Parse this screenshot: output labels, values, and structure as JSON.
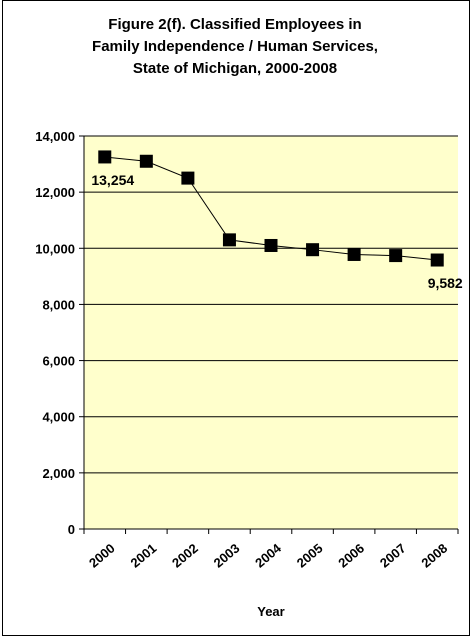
{
  "chart_data": {
    "type": "line",
    "title": "Figure 2(f). Classified Employees in\nFamily Independence / Human Services,\nState of Michigan, 2000-2008",
    "xlabel": "Year",
    "ylabel": "",
    "categories": [
      "2000",
      "2001",
      "2002",
      "2003",
      "2004",
      "2005",
      "2006",
      "2007",
      "2008"
    ],
    "series": [
      {
        "values": [
          13254,
          13100,
          12500,
          10300,
          10100,
          9950,
          9780,
          9740,
          9582
        ]
      }
    ],
    "data_labels": [
      {
        "index": 0,
        "text": "13,254"
      },
      {
        "index": 8,
        "text": "9,582"
      }
    ],
    "ylim": [
      0,
      14000
    ],
    "yticks": [
      0,
      2000,
      4000,
      6000,
      8000,
      10000,
      12000,
      14000
    ],
    "ytick_labels": [
      "0",
      "2,000",
      "4,000",
      "6,000",
      "8,000",
      "10,000",
      "12,000",
      "14,000"
    ],
    "grid": true,
    "colors": {
      "plot_background": "#FFFFCC",
      "line": "#000000",
      "marker": "#000000",
      "gridline": "#000000"
    }
  }
}
